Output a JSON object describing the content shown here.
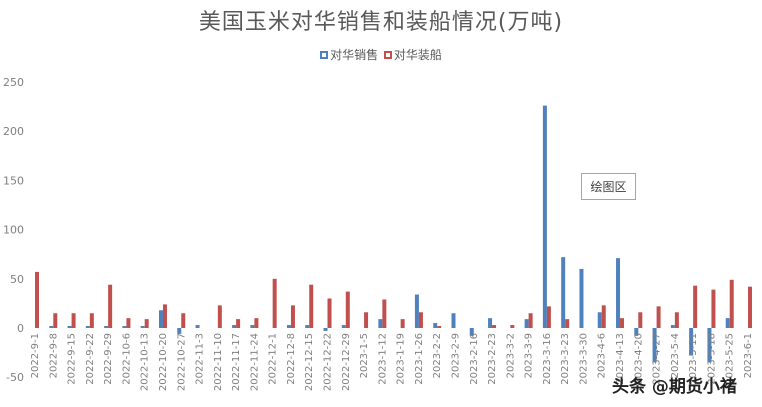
{
  "chart_data": {
    "type": "bar",
    "title": "美国玉米对华销售和装船情况(万吨)",
    "xlabel": "",
    "ylabel": "",
    "ylim": [
      -50,
      250
    ],
    "yticks": [
      -50,
      0,
      50,
      100,
      150,
      200,
      250
    ],
    "grid": false,
    "legend_position": "top",
    "categories": [
      "2022-9-1",
      "2022-9-8",
      "2022-9-15",
      "2022-9-22",
      "2022-9-29",
      "2022-10-6",
      "2022-10-13",
      "2022-10-20",
      "2022-10-27",
      "2022-11-3",
      "2022-11-10",
      "2022-11-17",
      "2022-11-24",
      "2022-12-1",
      "2022-12-8",
      "2022-12-15",
      "2022-12-22",
      "2022-12-29",
      "2023-1-5",
      "2023-1-12",
      "2023-1-19",
      "2023-1-26",
      "2023-2-2",
      "2023-2-9",
      "2023-2-16",
      "2023-2-23",
      "2023-3-2",
      "2023-3-9",
      "2023-3-16",
      "2023-3-23",
      "2023-3-30",
      "2023-4-6",
      "2023-4-13",
      "2023-4-20",
      "2023-4-27",
      "2023-5-4",
      "2023-5-11",
      "2023-5-18",
      "2023-5-25",
      "2023-6-1"
    ],
    "series": [
      {
        "name": "对华销售",
        "color": "#4f81bd",
        "values": [
          0,
          2,
          2,
          2,
          2,
          2,
          2,
          18,
          -6,
          3,
          0,
          3,
          3,
          0,
          3,
          3,
          -3,
          3,
          0,
          9,
          0,
          34,
          5,
          15,
          -8,
          10,
          0,
          9,
          226,
          72,
          60,
          16,
          71,
          -8,
          -35,
          3,
          -28,
          -35,
          10,
          0
        ]
      },
      {
        "name": "对华装船",
        "color": "#c0504d",
        "values": [
          57,
          15,
          15,
          15,
          44,
          10,
          9,
          24,
          15,
          0,
          23,
          9,
          10,
          50,
          23,
          44,
          30,
          37,
          16,
          29,
          9,
          16,
          2,
          0,
          0,
          3,
          3,
          15,
          22,
          9,
          0,
          23,
          10,
          16,
          22,
          16,
          43,
          39,
          49,
          42
        ]
      }
    ]
  },
  "ui": {
    "plot_area_tooltip": "绘图区",
    "watermark": "头条 @期货小褚"
  }
}
